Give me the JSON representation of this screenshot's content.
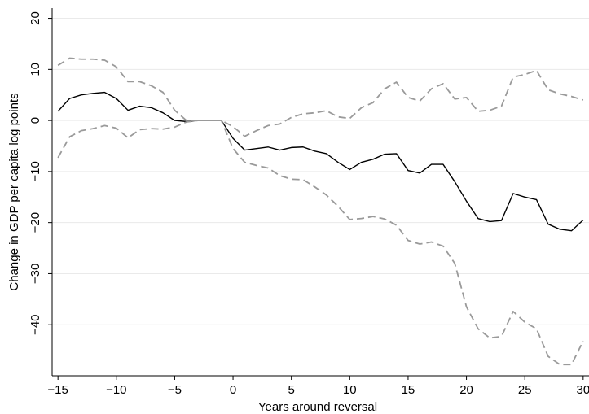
{
  "chart_data": {
    "type": "line",
    "xlabel": "Years around reversal",
    "ylabel": "Change in GDP per capita log points",
    "xlim": [
      -15.5,
      30.5
    ],
    "ylim": [
      -50,
      22
    ],
    "xticks": [
      -15,
      -10,
      -5,
      0,
      5,
      10,
      15,
      20,
      25,
      30
    ],
    "yticks": [
      20,
      10,
      0,
      -10,
      -20,
      -30,
      -40
    ],
    "grid": "horizontal",
    "x": [
      -15,
      -14,
      -13,
      -12,
      -11,
      -10,
      -9,
      -8,
      -7,
      -6,
      -5,
      -4,
      -3,
      -2,
      -1,
      0,
      1,
      2,
      3,
      4,
      5,
      6,
      7,
      8,
      9,
      10,
      11,
      12,
      13,
      14,
      15,
      16,
      17,
      18,
      19,
      20,
      21,
      22,
      23,
      24,
      25,
      26,
      27,
      28,
      29,
      30
    ],
    "series": [
      {
        "style": "solid",
        "color": "#000000",
        "values": [
          1.8,
          4.3,
          5.0,
          5.3,
          5.5,
          4.3,
          2.0,
          2.8,
          2.5,
          1.5,
          0.0,
          -0.2,
          0,
          0,
          0,
          -3.5,
          -5.8,
          -5.5,
          -5.2,
          -5.8,
          -5.3,
          -5.2,
          -6.0,
          -6.5,
          -8.2,
          -9.6,
          -8.2,
          -7.6,
          -6.6,
          -6.5,
          -9.8,
          -10.3,
          -8.6,
          -8.6,
          -12.0,
          -15.8,
          -19.2,
          -19.8,
          -19.6,
          -14.3,
          -15.0,
          -15.5,
          -20.3,
          -21.3,
          -21.6,
          -19.5
        ]
      },
      {
        "style": "dashed",
        "color": "#9a9a9a",
        "values": [
          10.8,
          12.2,
          12.0,
          12.0,
          11.8,
          10.5,
          7.6,
          7.6,
          6.8,
          5.5,
          2.0,
          0,
          0,
          0,
          0,
          -1.2,
          -3.1,
          -2.0,
          -1.0,
          -0.7,
          0.6,
          1.3,
          1.5,
          1.9,
          0.7,
          0.4,
          2.5,
          3.5,
          6.2,
          7.5,
          4.5,
          3.8,
          6.2,
          7.2,
          4.2,
          4.5,
          1.8,
          2.0,
          2.8,
          8.5,
          9.0,
          9.8,
          6.0,
          5.2,
          4.7,
          4.0
        ]
      },
      {
        "style": "dashed",
        "color": "#9a9a9a",
        "values": [
          -7.3,
          -3.2,
          -2.0,
          -1.6,
          -1.0,
          -1.5,
          -3.4,
          -1.8,
          -1.6,
          -1.7,
          -1.3,
          -0.3,
          0,
          0,
          0,
          -5.5,
          -8.2,
          -8.8,
          -9.3,
          -10.8,
          -11.5,
          -11.6,
          -13.0,
          -14.6,
          -16.8,
          -19.4,
          -19.2,
          -18.8,
          -19.3,
          -20.5,
          -23.5,
          -24.2,
          -23.8,
          -24.6,
          -28.0,
          -36.5,
          -40.8,
          -42.6,
          -42.3,
          -37.4,
          -39.5,
          -40.8,
          -46.2,
          -47.8,
          -47.8,
          -43.2
        ]
      }
    ]
  }
}
